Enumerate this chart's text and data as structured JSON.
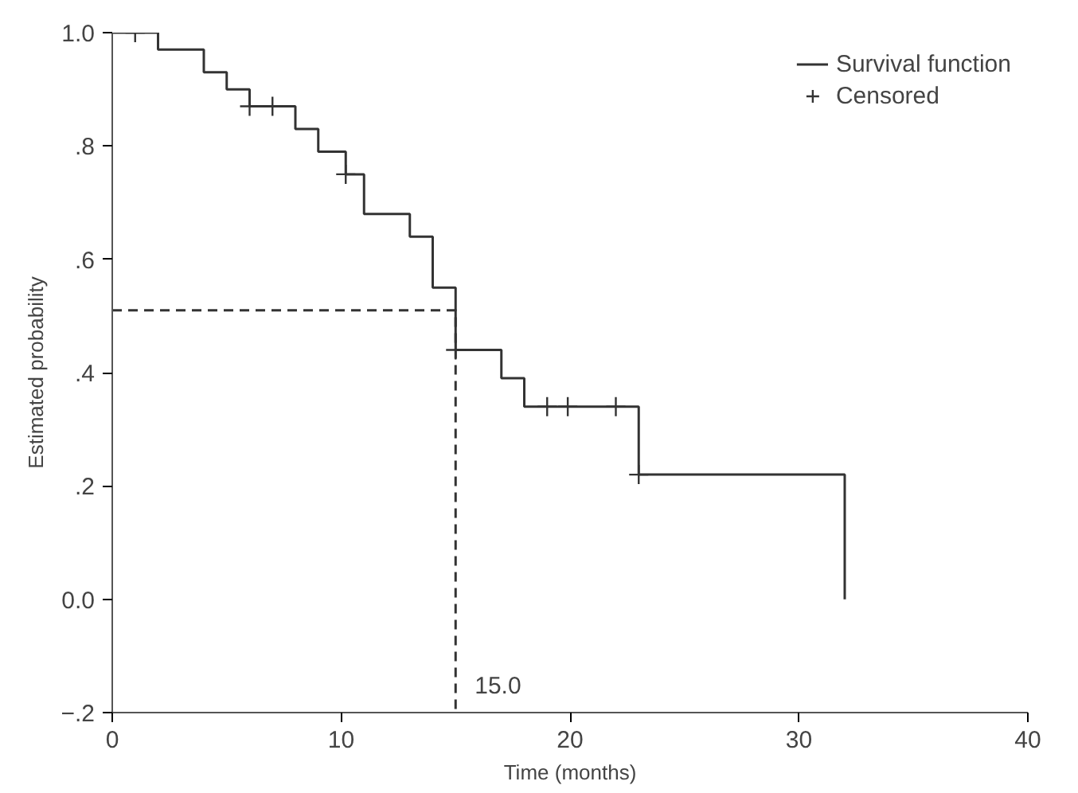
{
  "chart_data": {
    "type": "step",
    "xlabel": "Time (months)",
    "ylabel": "Estimated probability",
    "xlim": [
      0,
      40
    ],
    "ylim": [
      -0.2,
      1.0
    ],
    "xticks": [
      0,
      10,
      20,
      30,
      40
    ],
    "yticks": [
      {
        "value": 1.0,
        "label": "1.0"
      },
      {
        "value": 0.8,
        "label": ".8"
      },
      {
        "value": 0.6,
        "label": ".6"
      },
      {
        "value": 0.4,
        "label": ".4"
      },
      {
        "value": 0.2,
        "label": ".2"
      },
      {
        "value": 0.0,
        "label": "0.0"
      },
      {
        "value": -0.2,
        "label": "−.2"
      }
    ],
    "grid": false,
    "legend": "top right",
    "series": [
      {
        "name": "Survival function",
        "color": "#333333",
        "x": [
          0,
          2,
          4,
          5,
          6,
          8,
          9,
          10.2,
          11,
          13,
          14,
          15,
          17,
          18,
          23,
          32
        ],
        "values": [
          1.0,
          0.97,
          0.93,
          0.9,
          0.87,
          0.83,
          0.79,
          0.75,
          0.68,
          0.64,
          0.55,
          0.44,
          0.39,
          0.34,
          0.22,
          0.0
        ]
      },
      {
        "name": "Censored",
        "type": "scatter",
        "marker": "cross",
        "color": "#333333",
        "x": [
          1,
          6,
          7,
          10.2,
          15,
          19,
          19.9,
          22,
          23
        ],
        "values": [
          1.0,
          0.87,
          0.87,
          0.75,
          0.44,
          0.34,
          0.34,
          0.34,
          0.22
        ]
      },
      {
        "type": "line",
        "line_style": "dashed",
        "color": "#333333",
        "x": [
          0,
          15,
          15
        ],
        "values": [
          0.51,
          0.51,
          -0.2
        ]
      }
    ],
    "annotations": [
      {
        "text": "15.0",
        "x": 15,
        "y": -0.2
      }
    ]
  }
}
